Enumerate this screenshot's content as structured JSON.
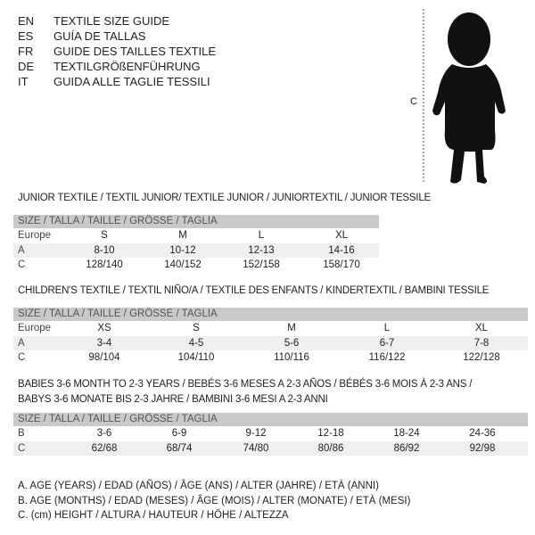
{
  "header": {
    "languages": [
      {
        "code": "EN",
        "title": "TEXTILE SIZE GUIDE"
      },
      {
        "code": "ES",
        "title": "GUÍA DE TALLAS"
      },
      {
        "code": "FR",
        "title": "GUIDE DES TAILLES TEXTILE"
      },
      {
        "code": "DE",
        "title": "TEXTILGRÖßENFÜHRUNG"
      },
      {
        "code": "IT",
        "title": "GUIDA ALLE TAGLIE TESSILI"
      }
    ]
  },
  "figure": {
    "measure_label": "C",
    "icon": "child-silhouette"
  },
  "tables": [
    {
      "title_lines": [
        "JUNIOR TEXTILE / TEXTIL JUNIOR/ TEXTILE JUNIOR / JUNIORTEXTIL / JUNIOR TESSILE"
      ],
      "size_header": "SIZE / TALLA / TAILLE / GRÖSSE / TAGLIA",
      "rows": [
        {
          "label": "Europe",
          "values": [
            "S",
            "M",
            "L",
            "XL"
          ]
        },
        {
          "label": "A",
          "values": [
            "8-10",
            "10-12",
            "12-13",
            "14-16"
          ]
        },
        {
          "label": "C",
          "values": [
            "128/140",
            "140/152",
            "152/158",
            "158/170"
          ]
        }
      ]
    },
    {
      "title_lines": [
        "CHILDREN'S TEXTILE / TEXTIL NIÑO/A / TEXTILE DES ENFANTS / KINDERTEXTIL / BAMBINI TESSILE"
      ],
      "size_header": "SIZE / TALLA / TAILLE / GRÖSSE / TAGLIA",
      "rows": [
        {
          "label": "Europe",
          "values": [
            "XS",
            "S",
            "M",
            "L",
            "XL"
          ]
        },
        {
          "label": "A",
          "values": [
            "3-4",
            "4-5",
            "5-6",
            "6-7",
            "7-8"
          ]
        },
        {
          "label": "C",
          "values": [
            "98/104",
            "104/110",
            "110/116",
            "116/122",
            "122/128"
          ]
        }
      ]
    },
    {
      "title_lines": [
        "BABIES 3-6 MONTH TO 2-3 YEARS / BEBÉS 3-6 MESES A 2-3 AÑOS / BÉBÉS 3-6 MOIS À 2-3 ANS /",
        "BABYS 3-6 MONATE BIS 2-3 JAHRE / BAMBINI 3-6 MESI A 2-3 ANNI"
      ],
      "size_header": "SIZE / TALLA / TAILLE / GRÖSSE / TAGLIA",
      "rows": [
        {
          "label": "B",
          "values": [
            "3-6",
            "6-9",
            "9-12",
            "12-18",
            "18-24",
            "24-36"
          ]
        },
        {
          "label": "C",
          "values": [
            "62/68",
            "68/74",
            "74/80",
            "80/86",
            "86/92",
            "92/98"
          ]
        }
      ]
    }
  ],
  "legend": [
    "A. AGE (YEARS) / EDAD (AÑOS) / ÂGE (ANS) / ALTER (JAHRE) / ETÀ (ANNI)",
    "B. AGE (MONTHS) / EDAD (MESES) / ÂGE (MOIS) / ALTER (MONATE) / ETÀ (MESI)",
    "C. (cm) HEIGHT / ALTURA / HAUTEUR / HÖHE / ALTEZZA"
  ],
  "colors": {
    "header_band": "#c9c9c9",
    "stripe": "#efefef",
    "text": "#222222"
  }
}
